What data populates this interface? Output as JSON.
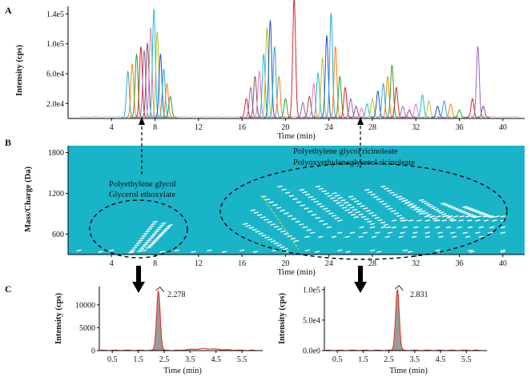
{
  "chart_data": [
    {
      "panel": "A",
      "type": "line",
      "xlabel": "Time (min)",
      "ylabel": "Intensity (cps)",
      "xlim": [
        0,
        42
      ],
      "ylim": [
        0,
        150000
      ],
      "x_ticks": [
        4,
        8,
        12,
        16,
        20,
        24,
        28,
        32,
        36,
        40
      ],
      "x_tick_labels": [
        "4",
        "8",
        "12",
        "16",
        "20",
        "24",
        "28",
        "32",
        "36",
        "40"
      ],
      "y_ticks": [
        20000,
        60000,
        100000,
        140000
      ],
      "y_tick_labels": [
        "2.0e4",
        "6.0e4",
        "1.0e5",
        "1.4e5"
      ],
      "palette": [
        "#2ca6e0",
        "#ff7f0e",
        "#2ca02c",
        "#d62728",
        "#9467bd",
        "#8c564b",
        "#e377c2",
        "#17becf",
        "#bcbd22",
        "#1f4fd1"
      ],
      "peaks": [
        {
          "rt": 5.5,
          "h": 62000
        },
        {
          "rt": 5.9,
          "h": 72000
        },
        {
          "rt": 6.3,
          "h": 85000
        },
        {
          "rt": 6.7,
          "h": 95000
        },
        {
          "rt": 7.0,
          "h": 90000
        },
        {
          "rt": 7.3,
          "h": 100000
        },
        {
          "rt": 7.6,
          "h": 120000
        },
        {
          "rt": 7.9,
          "h": 145000
        },
        {
          "rt": 8.2,
          "h": 115000
        },
        {
          "rt": 8.5,
          "h": 85000
        },
        {
          "rt": 8.8,
          "h": 65000
        },
        {
          "rt": 9.1,
          "h": 45000
        },
        {
          "rt": 9.4,
          "h": 28000
        },
        {
          "rt": 16.4,
          "h": 25000
        },
        {
          "rt": 16.8,
          "h": 40000
        },
        {
          "rt": 17.2,
          "h": 55000
        },
        {
          "rt": 17.6,
          "h": 62000
        },
        {
          "rt": 18.0,
          "h": 85000
        },
        {
          "rt": 18.3,
          "h": 120000
        },
        {
          "rt": 18.6,
          "h": 130000
        },
        {
          "rt": 19.0,
          "h": 95000
        },
        {
          "rt": 19.4,
          "h": 55000
        },
        {
          "rt": 20.0,
          "h": 25000
        },
        {
          "rt": 20.8,
          "h": 160000
        },
        {
          "rt": 21.6,
          "h": 20000
        },
        {
          "rt": 22.2,
          "h": 28000
        },
        {
          "rt": 22.6,
          "h": 45000
        },
        {
          "rt": 23.0,
          "h": 60000
        },
        {
          "rt": 23.4,
          "h": 80000
        },
        {
          "rt": 23.8,
          "h": 110000
        },
        {
          "rt": 24.2,
          "h": 140000
        },
        {
          "rt": 24.6,
          "h": 95000
        },
        {
          "rt": 25.0,
          "h": 55000
        },
        {
          "rt": 25.5,
          "h": 40000
        },
        {
          "rt": 26.0,
          "h": 25000
        },
        {
          "rt": 26.5,
          "h": 15000
        },
        {
          "rt": 27.0,
          "h": 12000
        },
        {
          "rt": 27.5,
          "h": 18000
        },
        {
          "rt": 28.0,
          "h": 25000
        },
        {
          "rt": 28.5,
          "h": 35000
        },
        {
          "rt": 29.0,
          "h": 45000
        },
        {
          "rt": 29.4,
          "h": 55000
        },
        {
          "rt": 29.8,
          "h": 70000
        },
        {
          "rt": 30.2,
          "h": 40000
        },
        {
          "rt": 30.8,
          "h": 15000
        },
        {
          "rt": 31.4,
          "h": 10000
        },
        {
          "rt": 32.0,
          "h": 18000
        },
        {
          "rt": 32.6,
          "h": 30000
        },
        {
          "rt": 33.2,
          "h": 22000
        },
        {
          "rt": 34.0,
          "h": 15000
        },
        {
          "rt": 34.6,
          "h": 22000
        },
        {
          "rt": 35.2,
          "h": 18000
        },
        {
          "rt": 36.0,
          "h": 10000
        },
        {
          "rt": 37.2,
          "h": 25000
        },
        {
          "rt": 37.7,
          "h": 95000
        },
        {
          "rt": 38.2,
          "h": 15000
        }
      ]
    },
    {
      "panel": "B",
      "type": "heatmap",
      "xlabel": "Time (min)",
      "ylabel": "Mass/Charge (Da)",
      "xlim": [
        0,
        42
      ],
      "ylim": [
        300,
        1900
      ],
      "x_ticks": [
        4,
        8,
        12,
        16,
        20,
        24,
        28,
        32,
        36,
        40
      ],
      "x_tick_labels": [
        "4",
        "8",
        "12",
        "16",
        "20",
        "24",
        "28",
        "32",
        "36",
        "40"
      ],
      "y_ticks": [
        600,
        1200,
        1800
      ],
      "y_tick_labels": [
        "600",
        "1200",
        "1800"
      ],
      "background_color": "#1ab4c8",
      "streak_color": "#ffffff",
      "annotations": [
        "Polyethylene glycol",
        "Glycerol  ethoxylate",
        "Polyethylene glycol ricinoleate",
        "Polyoxyethyleneglycerol  ricinoleate"
      ],
      "streaks": [
        {
          "t0": 5.8,
          "m0": 330,
          "t1": 8.0,
          "m1": 780
        },
        {
          "t0": 6.6,
          "m0": 350,
          "t1": 8.8,
          "m1": 760
        },
        {
          "t0": 7.4,
          "m0": 400,
          "t1": 9.4,
          "m1": 730
        },
        {
          "t0": 16.3,
          "m0": 750,
          "t1": 20.0,
          "m1": 380
        },
        {
          "t0": 17.0,
          "m0": 950,
          "t1": 21.0,
          "m1": 500
        },
        {
          "t0": 18.0,
          "m0": 1150,
          "t1": 22.5,
          "m1": 620
        },
        {
          "t0": 19.5,
          "m0": 1300,
          "t1": 24.0,
          "m1": 700
        },
        {
          "t0": 21.5,
          "m0": 1250,
          "t1": 25.0,
          "m1": 800
        },
        {
          "t0": 23.0,
          "m0": 1300,
          "t1": 26.5,
          "m1": 850
        },
        {
          "t0": 24.5,
          "m0": 1200,
          "t1": 28.0,
          "m1": 750
        },
        {
          "t0": 26.0,
          "m0": 1150,
          "t1": 29.5,
          "m1": 700
        },
        {
          "t0": 27.5,
          "m0": 1250,
          "t1": 31.0,
          "m1": 800
        },
        {
          "t0": 29.0,
          "m0": 1300,
          "t1": 32.5,
          "m1": 900
        },
        {
          "t0": 30.5,
          "m0": 1150,
          "t1": 34.0,
          "m1": 800
        },
        {
          "t0": 32.5,
          "m0": 1100,
          "t1": 35.5,
          "m1": 800
        },
        {
          "t0": 34.5,
          "m0": 1050,
          "t1": 37.5,
          "m1": 850
        },
        {
          "t0": 36.5,
          "m0": 1000,
          "t1": 39.0,
          "m1": 850
        },
        {
          "t0": 25.0,
          "m0": 620,
          "t1": 40.0,
          "m1": 620
        },
        {
          "t0": 27.0,
          "m0": 700,
          "t1": 40.0,
          "m1": 700
        },
        {
          "t0": 30.0,
          "m0": 800,
          "t1": 40.0,
          "m1": 800
        },
        {
          "t0": 33.0,
          "m0": 860,
          "t1": 40.0,
          "m1": 860
        },
        {
          "t0": 22.0,
          "m0": 560,
          "t1": 38.0,
          "m1": 560
        },
        {
          "t0": 1.0,
          "m0": 360,
          "t1": 40.0,
          "m1": 360
        },
        {
          "t0": 3.0,
          "m0": 340,
          "t1": 40.0,
          "m1": 340
        }
      ],
      "yellow_trace": {
        "t0": 17.8,
        "m0": 1170,
        "t1": 21.2,
        "m1": 380,
        "color": "#d8d83a"
      }
    },
    {
      "panel": "C",
      "type": "area",
      "xlabel": "Time (min)",
      "ylabel": "Intensity (cps)",
      "xlim": [
        0,
        6.3
      ],
      "ylim": [
        0,
        14000
      ],
      "x_ticks": [
        0.5,
        1.5,
        2.5,
        3.5,
        4.5,
        5.5
      ],
      "x_tick_labels": [
        "0.5",
        "1.5",
        "2.5",
        "3.5",
        "4.5",
        "5.5"
      ],
      "y_ticks": [
        0,
        5000,
        10000
      ],
      "y_tick_labels": [
        "0",
        "5000",
        "10000"
      ],
      "peak_label": "2.278",
      "peak_rt": 2.278,
      "peak_height": 13000,
      "line_color": "#e03b2a",
      "fill_color": "#9a9a9a"
    },
    {
      "panel": "",
      "type": "area",
      "xlabel": "Time (min)",
      "ylabel": "Intensity (cps)",
      "xlim": [
        0,
        6.3
      ],
      "ylim": [
        0,
        105000
      ],
      "x_ticks": [
        0.5,
        1.5,
        2.5,
        3.5,
        4.5,
        5.5
      ],
      "x_tick_labels": [
        "0.5",
        "1.5",
        "2.5",
        "3.5",
        "4.5",
        "5.5"
      ],
      "y_ticks": [
        0,
        50000,
        100000
      ],
      "y_tick_labels": [
        "0.0e0",
        "5.0e4",
        "1.0e5"
      ],
      "peak_label": "2.831",
      "peak_rt": 2.831,
      "peak_height": 100000,
      "line_color": "#e03b2a",
      "fill_color": "#9a9a9a"
    }
  ]
}
